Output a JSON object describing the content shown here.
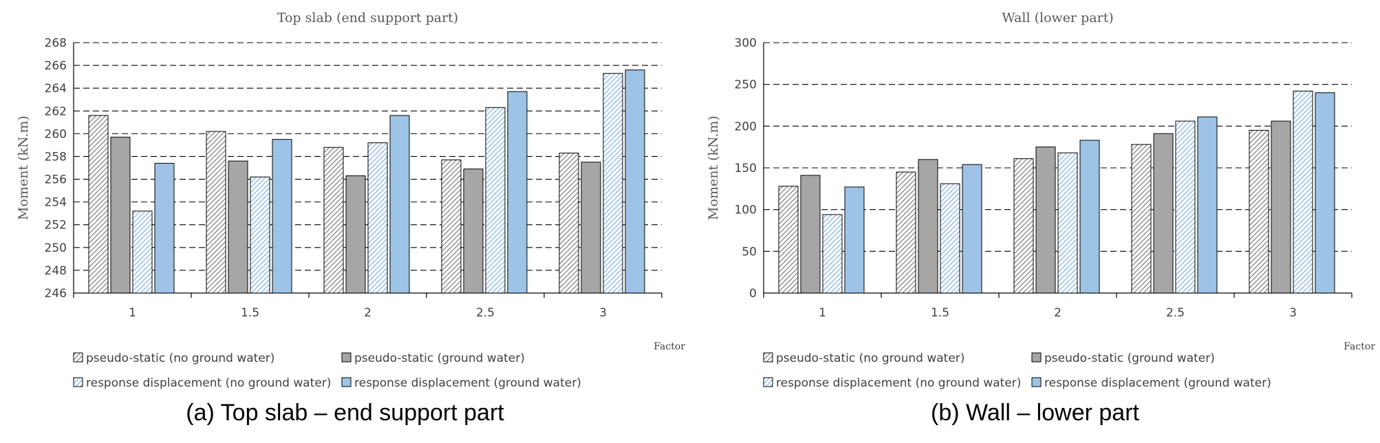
{
  "chart_data": [
    {
      "type": "bar",
      "title": "Top slab (end support part)",
      "xlabel": "Factor",
      "ylabel": "Moment (kN.m)",
      "categories": [
        "1",
        "1.5",
        "2",
        "2.5",
        "3"
      ],
      "ylim": [
        246,
        268
      ],
      "yticks": [
        "246",
        "248",
        "250",
        "252",
        "254",
        "256",
        "258",
        "260",
        "262",
        "264",
        "266",
        "268"
      ],
      "grid": true,
      "legend_position": "bottom",
      "caption": "(a) Top slab – end support part",
      "series": [
        {
          "name": "pseudo-static (no ground water)",
          "values": [
            261.6,
            260.2,
            258.8,
            257.7,
            258.3
          ]
        },
        {
          "name": "pseudo-static (ground water)",
          "values": [
            259.7,
            257.6,
            256.3,
            256.9,
            257.5
          ]
        },
        {
          "name": "response displacement (no ground water)",
          "values": [
            253.2,
            256.2,
            259.2,
            262.3,
            265.3
          ]
        },
        {
          "name": "response displacement (ground water)",
          "values": [
            257.4,
            259.5,
            261.6,
            263.7,
            265.6
          ]
        }
      ]
    },
    {
      "type": "bar",
      "title": "Wall (lower part)",
      "xlabel": "Factor",
      "ylabel": "Moment (kN.m)",
      "categories": [
        "1",
        "1.5",
        "2",
        "2.5",
        "3"
      ],
      "ylim": [
        0,
        300
      ],
      "yticks": [
        "0",
        "50",
        "100",
        "150",
        "200",
        "250",
        "300"
      ],
      "grid": true,
      "legend_position": "bottom",
      "caption": "(b) Wall – lower part",
      "series": [
        {
          "name": "pseudo-static (no ground water)",
          "values": [
            128,
            145,
            161,
            178,
            195
          ]
        },
        {
          "name": "pseudo-static (ground water)",
          "values": [
            141,
            160,
            175,
            191,
            206
          ]
        },
        {
          "name": "response displacement (no ground water)",
          "values": [
            94,
            131,
            168,
            206,
            242
          ]
        },
        {
          "name": "response displacement (ground water)",
          "values": [
            127,
            154,
            183,
            211,
            240
          ]
        }
      ]
    }
  ],
  "colors": {
    "pseudo_static_ground_water": "#A6A6A6",
    "response_displacement_ground_water": "#9DC3E6",
    "hatch_gray": "#8C8C8C",
    "hatch_blue": "#9DC3E6",
    "title_gray": "#595959"
  }
}
